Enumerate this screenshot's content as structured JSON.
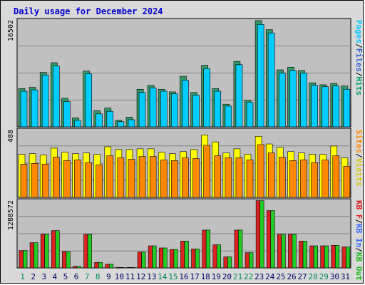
{
  "chart_data": {
    "type": "bar",
    "title": "Daily usage for December 2024",
    "categories": [
      "1",
      "2",
      "3",
      "4",
      "5",
      "6",
      "7",
      "8",
      "9",
      "10",
      "11",
      "12",
      "13",
      "14",
      "15",
      "16",
      "17",
      "18",
      "19",
      "20",
      "21",
      "22",
      "23",
      "24",
      "25",
      "26",
      "27",
      "28",
      "29",
      "30",
      "31"
    ],
    "weekend_days": [
      "1",
      "7",
      "8",
      "14",
      "15",
      "21",
      "22",
      "28",
      "29"
    ],
    "panels": [
      {
        "id": "hits",
        "ymax_label": "16502",
        "ymax": 16502,
        "legend": [
          {
            "name": "Pages",
            "color": "#00c8ff"
          },
          {
            "sep": "/"
          },
          {
            "name": "Files",
            "color": "#3366cc"
          },
          {
            "sep": "/"
          },
          {
            "name": "Hits",
            "color": "#009966"
          }
        ],
        "series": [
          {
            "name": "Hits",
            "color": "#339966",
            "values": [
              5900,
              6100,
              8400,
              9900,
              4400,
              1400,
              8600,
              2500,
              2900,
              1000,
              1500,
              5800,
              6400,
              5800,
              5400,
              7800,
              5300,
              9500,
              5900,
              3500,
              10100,
              4100,
              16400,
              15000,
              8800,
              9200,
              8700,
              6800,
              6500,
              6700,
              6300
            ]
          },
          {
            "name": "Files",
            "color": "#00ccff",
            "values": [
              5500,
              5700,
              8000,
              9400,
              3900,
              1000,
              8200,
              2000,
              2400,
              800,
              1100,
              5300,
              6000,
              5500,
              5100,
              7200,
              4900,
              9000,
              5500,
              3200,
              9600,
              3800,
              15800,
              14500,
              8300,
              8700,
              8300,
              6400,
              6200,
              6300,
              5800
            ]
          }
        ]
      },
      {
        "id": "visits",
        "ymax_label": "488",
        "ymax": 488,
        "legend": [
          {
            "name": "Sites",
            "color": "#ff8800"
          },
          {
            "sep": "/"
          },
          {
            "name": "Visits",
            "color": "#d8c800"
          }
        ],
        "series": [
          {
            "name": "Visits",
            "color": "#ffff00",
            "values": [
              310,
              315,
              305,
              355,
              325,
              315,
              320,
              310,
              365,
              345,
              345,
              350,
              350,
              325,
              315,
              330,
              345,
              450,
              400,
              320,
              350,
              310,
              440,
              385,
              360,
              330,
              320,
              310,
              310,
              370,
              285
            ]
          },
          {
            "name": "Sites",
            "color": "#ff8800",
            "values": [
              240,
              245,
              240,
              290,
              265,
              270,
              250,
              235,
              300,
              285,
              275,
              295,
              295,
              270,
              265,
              285,
              280,
              375,
              300,
              285,
              285,
              270,
              380,
              320,
              290,
              265,
              270,
              250,
              270,
              300,
              225
            ]
          }
        ]
      },
      {
        "id": "kbytes",
        "ymax_label": "1288572",
        "ymax": 1288572,
        "legend": [
          {
            "name": "KB F",
            "color": "#dd2222"
          },
          {
            "sep": "/"
          },
          {
            "name": "KB In",
            "color": "#3366ff"
          },
          {
            "sep": "/"
          },
          {
            "name": "KB Out",
            "color": "#22bb22"
          }
        ],
        "series": [
          {
            "name": "KB F",
            "color": "#dd2222",
            "values": [
              330000,
              480000,
              640000,
              710000,
              310000,
              30000,
              640000,
              105000,
              70000,
              10000,
              10000,
              300000,
              420000,
              380000,
              350000,
              510000,
              360000,
              720000,
              440000,
              210000,
              720000,
              290000,
              1280000,
              1090000,
              640000,
              640000,
              510000,
              420000,
              420000,
              430000,
              400000
            ]
          },
          {
            "name": "KB Out",
            "color": "#22cc22",
            "values": [
              330000,
              480000,
              640000,
              710000,
              310000,
              30000,
              640000,
              105000,
              70000,
              10000,
              10000,
              300000,
              420000,
              380000,
              350000,
              510000,
              360000,
              720000,
              440000,
              210000,
              720000,
              290000,
              1280000,
              1090000,
              640000,
              640000,
              510000,
              420000,
              420000,
              430000,
              400000
            ]
          }
        ]
      }
    ]
  }
}
